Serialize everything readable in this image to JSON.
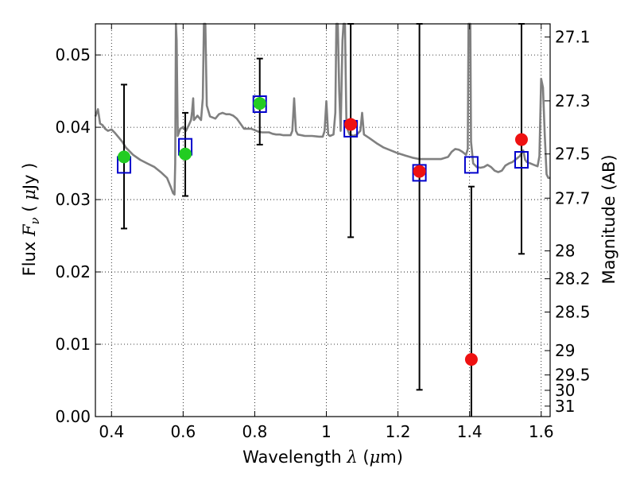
{
  "chart_data": {
    "type": "scatter",
    "xlabel": {
      "prefix": "Wavelength",
      "symbol": "λ",
      "unit_open": "(",
      "unit_mu": "μ",
      "unit_rest": "m)"
    },
    "ylabel": {
      "prefix": "Flux",
      "symbol": "F",
      "symbol_sub": "ν",
      "unit_open": "(",
      "unit_mu": "μ",
      "unit_rest": "Jy )"
    },
    "y2label": "Magnitude (AB)",
    "xlim": [
      0.355,
      1.625
    ],
    "ylim": [
      0.0,
      0.0543
    ],
    "grid": true,
    "xticks": [
      {
        "value": 0.4,
        "label": "0.4"
      },
      {
        "value": 0.6,
        "label": "0.6"
      },
      {
        "value": 0.8,
        "label": "0.8"
      },
      {
        "value": 1.0,
        "label": "1"
      },
      {
        "value": 1.2,
        "label": "1.2"
      },
      {
        "value": 1.4,
        "label": "1.4"
      },
      {
        "value": 1.6,
        "label": "1.6"
      }
    ],
    "yticks": [
      {
        "value": 0.0,
        "label": "0.00"
      },
      {
        "value": 0.01,
        "label": "0.01"
      },
      {
        "value": 0.02,
        "label": "0.02"
      },
      {
        "value": 0.03,
        "label": "0.03"
      },
      {
        "value": 0.04,
        "label": "0.04"
      },
      {
        "value": 0.05,
        "label": "0.05"
      }
    ],
    "y2ticks": [
      {
        "mag": 27.1,
        "label": "27.1"
      },
      {
        "mag": 27.3,
        "label": "27.3"
      },
      {
        "mag": 27.5,
        "label": "27.5"
      },
      {
        "mag": 27.7,
        "label": "27.7"
      },
      {
        "mag": 28.0,
        "label": "28"
      },
      {
        "mag": 28.2,
        "label": "28.2"
      },
      {
        "mag": 28.5,
        "label": "28.5"
      },
      {
        "mag": 29.0,
        "label": "29"
      },
      {
        "mag": 29.5,
        "label": "29.5"
      },
      {
        "mag": 30.0,
        "label": "30"
      },
      {
        "mag": 31.0,
        "label": "31"
      }
    ],
    "colors": {
      "sed": "#808080",
      "green_points": "#22cc22",
      "red_points": "#ee1111",
      "model_squares": "#0000cc",
      "errorbars": "#000000"
    },
    "green_points": [
      {
        "x": 0.435,
        "y": 0.0359,
        "err": [
          0.026,
          0.0459
        ]
      },
      {
        "x": 0.606,
        "y": 0.0363,
        "err": [
          0.0305,
          0.042
        ]
      },
      {
        "x": 0.814,
        "y": 0.0433,
        "err": [
          0.0376,
          0.0495
        ]
      }
    ],
    "red_points": [
      {
        "x": 1.068,
        "y": 0.0404,
        "err": [
          0.0248,
          0.0543
        ]
      },
      {
        "x": 1.26,
        "y": 0.0339,
        "err": [
          0.0037,
          0.0543
        ]
      },
      {
        "x": 1.405,
        "y": 0.0079,
        "err": [
          0.0,
          0.0318
        ]
      },
      {
        "x": 1.545,
        "y": 0.0383,
        "err": [
          0.0225,
          0.0543
        ]
      }
    ],
    "model_squares": [
      {
        "x": 0.435,
        "y": 0.0348
      },
      {
        "x": 0.606,
        "y": 0.0373
      },
      {
        "x": 0.814,
        "y": 0.0432
      },
      {
        "x": 1.068,
        "y": 0.0398
      },
      {
        "x": 1.26,
        "y": 0.0337
      },
      {
        "x": 1.405,
        "y": 0.0348
      },
      {
        "x": 1.545,
        "y": 0.0355
      }
    ],
    "sed_spectrum": [
      [
        0.355,
        0.0415
      ],
      [
        0.362,
        0.0425
      ],
      [
        0.368,
        0.0405
      ],
      [
        0.375,
        0.0403
      ],
      [
        0.382,
        0.0398
      ],
      [
        0.39,
        0.0395
      ],
      [
        0.4,
        0.0397
      ],
      [
        0.41,
        0.0392
      ],
      [
        0.42,
        0.0386
      ],
      [
        0.43,
        0.038
      ],
      [
        0.44,
        0.0372
      ],
      [
        0.46,
        0.0362
      ],
      [
        0.48,
        0.0355
      ],
      [
        0.5,
        0.035
      ],
      [
        0.52,
        0.0345
      ],
      [
        0.54,
        0.0337
      ],
      [
        0.555,
        0.033
      ],
      [
        0.565,
        0.0318
      ],
      [
        0.572,
        0.0309
      ],
      [
        0.576,
        0.0307
      ],
      [
        0.578,
        0.035
      ],
      [
        0.58,
        0.0543
      ],
      [
        0.582,
        0.052
      ],
      [
        0.585,
        0.0388
      ],
      [
        0.592,
        0.0398
      ],
      [
        0.6,
        0.04
      ],
      [
        0.608,
        0.0395
      ],
      [
        0.615,
        0.0402
      ],
      [
        0.622,
        0.041
      ],
      [
        0.625,
        0.0422
      ],
      [
        0.628,
        0.044
      ],
      [
        0.63,
        0.041
      ],
      [
        0.64,
        0.0416
      ],
      [
        0.65,
        0.041
      ],
      [
        0.655,
        0.044
      ],
      [
        0.658,
        0.0543
      ],
      [
        0.662,
        0.0543
      ],
      [
        0.666,
        0.043
      ],
      [
        0.675,
        0.0415
      ],
      [
        0.69,
        0.0412
      ],
      [
        0.7,
        0.0418
      ],
      [
        0.71,
        0.042
      ],
      [
        0.72,
        0.0418
      ],
      [
        0.73,
        0.0418
      ],
      [
        0.74,
        0.0416
      ],
      [
        0.75,
        0.0412
      ],
      [
        0.76,
        0.0405
      ],
      [
        0.77,
        0.0398
      ],
      [
        0.78,
        0.0398
      ],
      [
        0.79,
        0.0398
      ],
      [
        0.8,
        0.0396
      ],
      [
        0.81,
        0.0394
      ],
      [
        0.82,
        0.0393
      ],
      [
        0.84,
        0.0393
      ],
      [
        0.85,
        0.0391
      ],
      [
        0.86,
        0.039
      ],
      [
        0.87,
        0.039
      ],
      [
        0.88,
        0.0389
      ],
      [
        0.89,
        0.0389
      ],
      [
        0.9,
        0.0389
      ],
      [
        0.905,
        0.0395
      ],
      [
        0.91,
        0.044
      ],
      [
        0.915,
        0.0395
      ],
      [
        0.92,
        0.039
      ],
      [
        0.94,
        0.0388
      ],
      [
        0.96,
        0.0388
      ],
      [
        0.98,
        0.0387
      ],
      [
        0.99,
        0.0387
      ],
      [
        0.995,
        0.0395
      ],
      [
        1.0,
        0.0436
      ],
      [
        1.005,
        0.039
      ],
      [
        1.01,
        0.0388
      ],
      [
        1.02,
        0.039
      ],
      [
        1.025,
        0.042
      ],
      [
        1.028,
        0.0543
      ],
      [
        1.032,
        0.0543
      ],
      [
        1.036,
        0.045
      ],
      [
        1.04,
        0.0395
      ],
      [
        1.045,
        0.052
      ],
      [
        1.048,
        0.0543
      ],
      [
        1.052,
        0.0543
      ],
      [
        1.056,
        0.041
      ],
      [
        1.06,
        0.0396
      ],
      [
        1.065,
        0.039
      ],
      [
        1.075,
        0.0388
      ],
      [
        1.085,
        0.039
      ],
      [
        1.095,
        0.0395
      ],
      [
        1.1,
        0.042
      ],
      [
        1.105,
        0.039
      ],
      [
        1.12,
        0.0385
      ],
      [
        1.14,
        0.0378
      ],
      [
        1.16,
        0.0372
      ],
      [
        1.18,
        0.0368
      ],
      [
        1.2,
        0.0364
      ],
      [
        1.22,
        0.0361
      ],
      [
        1.24,
        0.0358
      ],
      [
        1.26,
        0.0356
      ],
      [
        1.28,
        0.0356
      ],
      [
        1.3,
        0.0356
      ],
      [
        1.32,
        0.0356
      ],
      [
        1.34,
        0.0359
      ],
      [
        1.35,
        0.0366
      ],
      [
        1.36,
        0.037
      ],
      [
        1.37,
        0.0369
      ],
      [
        1.38,
        0.0366
      ],
      [
        1.39,
        0.0362
      ],
      [
        1.395,
        0.037
      ],
      [
        1.397,
        0.0543
      ],
      [
        1.402,
        0.0543
      ],
      [
        1.404,
        0.038
      ],
      [
        1.41,
        0.035
      ],
      [
        1.42,
        0.0345
      ],
      [
        1.43,
        0.0344
      ],
      [
        1.44,
        0.0345
      ],
      [
        1.45,
        0.0348
      ],
      [
        1.46,
        0.0345
      ],
      [
        1.47,
        0.034
      ],
      [
        1.48,
        0.0338
      ],
      [
        1.49,
        0.034
      ],
      [
        1.5,
        0.0347
      ],
      [
        1.51,
        0.035
      ],
      [
        1.52,
        0.0352
      ],
      [
        1.53,
        0.0356
      ],
      [
        1.54,
        0.036
      ],
      [
        1.55,
        0.0368
      ],
      [
        1.555,
        0.0355
      ],
      [
        1.56,
        0.0352
      ],
      [
        1.57,
        0.035
      ],
      [
        1.58,
        0.0348
      ],
      [
        1.59,
        0.0346
      ],
      [
        1.595,
        0.036
      ],
      [
        1.6,
        0.0467
      ],
      [
        1.605,
        0.0455
      ],
      [
        1.61,
        0.039
      ],
      [
        1.615,
        0.0335
      ],
      [
        1.62,
        0.033
      ],
      [
        1.625,
        0.033
      ]
    ]
  }
}
